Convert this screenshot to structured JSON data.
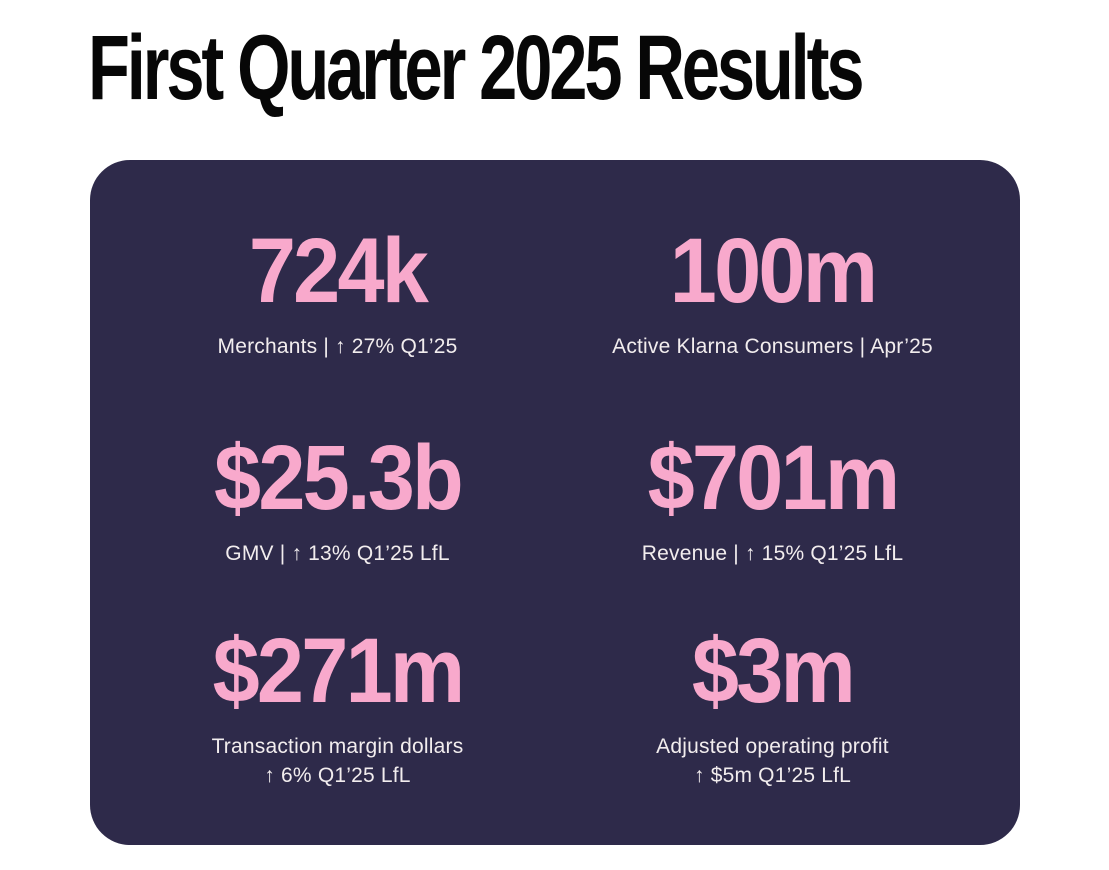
{
  "page": {
    "title": "First Quarter 2025 Results"
  },
  "colors": {
    "page_bg": "#ffffff",
    "panel_bg": "#2e2a4a",
    "accent_pink": "#f8a9cc",
    "label_text": "#f2edee",
    "title_text": "#070707"
  },
  "metrics": [
    {
      "value": "724k",
      "lines": [
        "Merchants | ↑ 27% Q1’25"
      ]
    },
    {
      "value": "100m",
      "lines": [
        "Active Klarna Consumers | Apr’25"
      ]
    },
    {
      "value": "$25.3b",
      "lines": [
        "GMV | ↑ 13% Q1’25 LfL"
      ]
    },
    {
      "value": "$701m",
      "lines": [
        "Revenue | ↑ 15% Q1’25 LfL"
      ]
    },
    {
      "value": "$271m",
      "lines": [
        "Transaction margin dollars",
        "↑ 6% Q1’25 LfL"
      ]
    },
    {
      "value": "$3m",
      "lines": [
        "Adjusted operating profit",
        "↑ $5m Q1’25 LfL"
      ]
    }
  ]
}
